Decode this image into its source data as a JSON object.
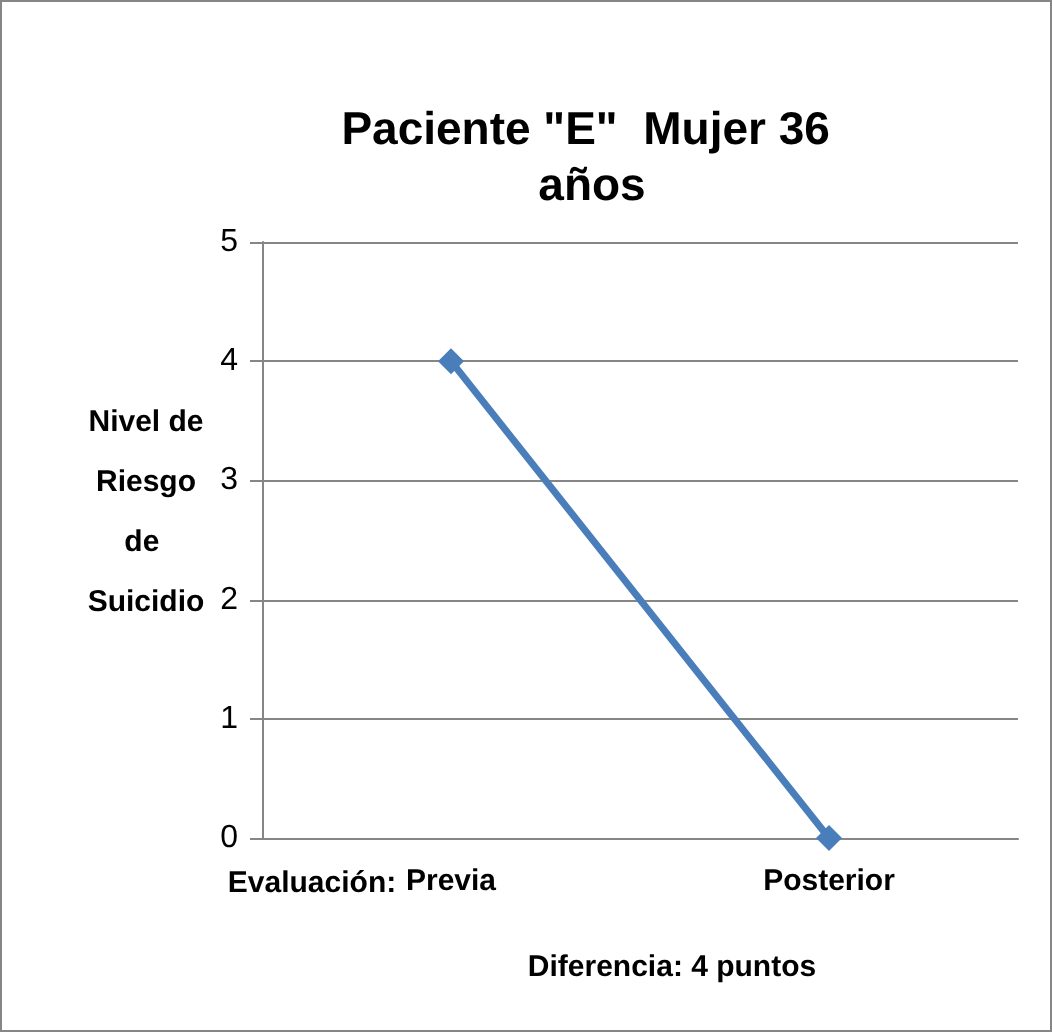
{
  "chart_data": {
    "type": "line",
    "title": "Paciente \"E\"  Mujer 36 años",
    "xlabel": "Evaluación:",
    "ylabel": "Nivel de Riesgo de Suicidio",
    "categories": [
      "Previa",
      "Posterior"
    ],
    "series": [
      {
        "color": "#4a7ebb",
        "values": [
          4,
          0
        ]
      }
    ],
    "ylim": [
      0,
      5
    ],
    "yticks": [
      0,
      1,
      2,
      3,
      4,
      5
    ],
    "grid": "y",
    "marker": "diamond",
    "line_style": "solid",
    "annotations": [
      "Diferencia: 4 puntos"
    ]
  }
}
